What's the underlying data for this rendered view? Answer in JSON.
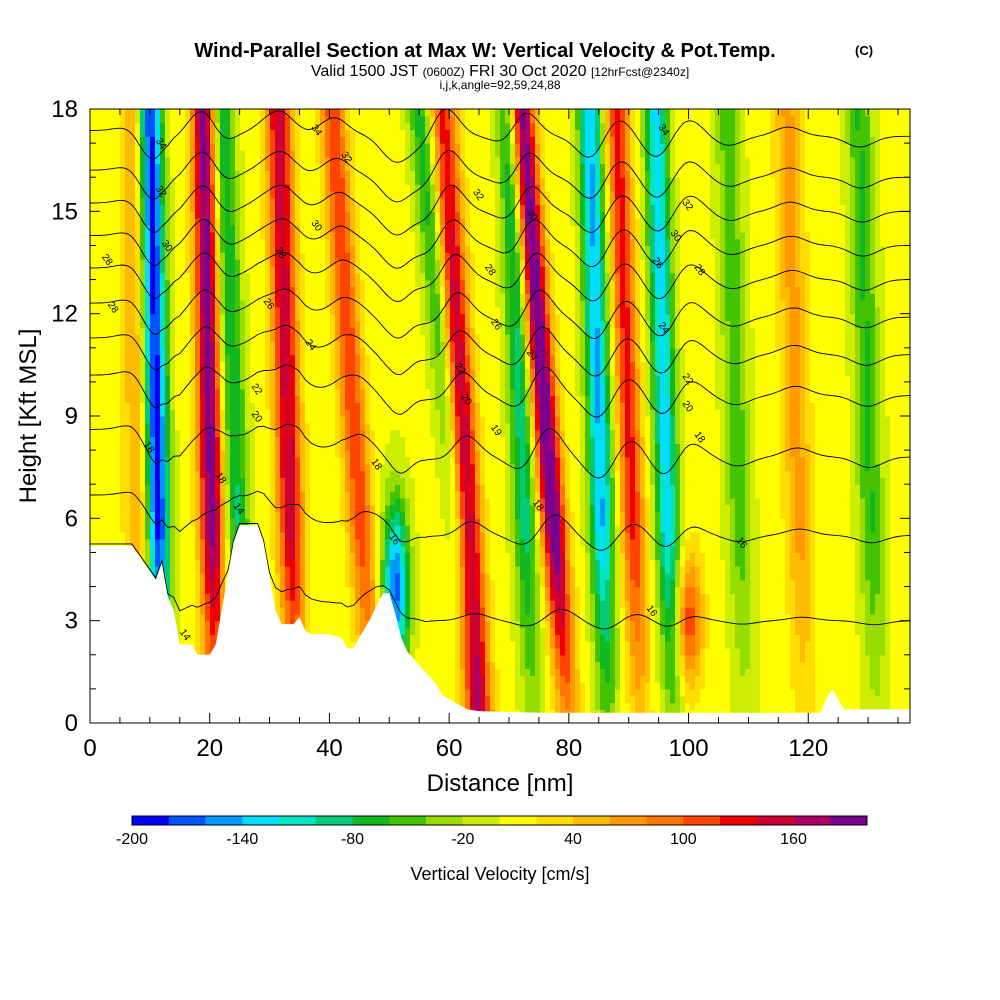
{
  "chart_data": {
    "type": "heatmap",
    "title": "Wind-Parallel Section at Max W: Vertical Velocity & Pot.Temp.",
    "title_mark": "(C)",
    "subtitle": {
      "valid": "Valid 1500 JST",
      "utc": "(0600Z)",
      "date": "FRI 30 Oct 2020",
      "forecast": "[12hrFcst@2340z]"
    },
    "params_line": "i,j,k,angle=92,59,24,88",
    "xlabel": "Distance [nm]",
    "ylabel": "Height [Kft MSL]",
    "xlim": [
      0,
      137
    ],
    "ylim": [
      0,
      18
    ],
    "x_ticks": [
      "0",
      "20",
      "40",
      "60",
      "80",
      "100",
      "120"
    ],
    "y_ticks": [
      "0",
      "3",
      "6",
      "9",
      "12",
      "15",
      "18"
    ],
    "colorbar": {
      "label": "Vertical Velocity [cm/s]",
      "tick_labels": [
        "-200",
        "-140",
        "-80",
        "-20",
        "40",
        "100",
        "160"
      ],
      "levels": [
        -200,
        -180,
        -160,
        -140,
        -120,
        -100,
        -80,
        -60,
        -40,
        -20,
        0,
        20,
        40,
        60,
        80,
        100,
        120,
        140,
        160,
        180,
        200
      ],
      "colors": [
        "#0000ff",
        "#0055ff",
        "#0099ff",
        "#00ddff",
        "#00e6c0",
        "#00cc77",
        "#11b822",
        "#44c400",
        "#99dd00",
        "#ccee00",
        "#ffff00",
        "#ffdd00",
        "#ffbb00",
        "#ff9900",
        "#ff7700",
        "#ff4400",
        "#ee0000",
        "#cc0033",
        "#aa0066",
        "#7a0090"
      ]
    },
    "terrain": [
      [
        0,
        5.2
      ],
      [
        7,
        5.2
      ],
      [
        9,
        4.7
      ],
      [
        11,
        4.2
      ],
      [
        12,
        4.7
      ],
      [
        13,
        3.7
      ],
      [
        14,
        3.3
      ],
      [
        15,
        2.3
      ],
      [
        17,
        2.3
      ],
      [
        18,
        2.0
      ],
      [
        20,
        2.0
      ],
      [
        21,
        2.3
      ],
      [
        22,
        3.3
      ],
      [
        24,
        5.3
      ],
      [
        25,
        5.8
      ],
      [
        28,
        5.8
      ],
      [
        29,
        5.3
      ],
      [
        30,
        4.3
      ],
      [
        31,
        3.3
      ],
      [
        32,
        2.9
      ],
      [
        34,
        2.9
      ],
      [
        35,
        3.1
      ],
      [
        36,
        2.7
      ],
      [
        37,
        2.6
      ],
      [
        40,
        2.6
      ],
      [
        42,
        2.5
      ],
      [
        43,
        2.2
      ],
      [
        44,
        2.2
      ],
      [
        45,
        2.5
      ],
      [
        47,
        3.1
      ],
      [
        48,
        3.5
      ],
      [
        49,
        3.8
      ],
      [
        50,
        3.8
      ],
      [
        51,
        3.2
      ],
      [
        52,
        2.5
      ],
      [
        53,
        2.1
      ],
      [
        54,
        1.9
      ],
      [
        56,
        1.5
      ],
      [
        58,
        1.1
      ],
      [
        59,
        0.8
      ],
      [
        61,
        0.6
      ],
      [
        63,
        0.4
      ],
      [
        65,
        0.35
      ],
      [
        75,
        0.3
      ],
      [
        100,
        0.3
      ],
      [
        122,
        0.3
      ],
      [
        123,
        0.7
      ],
      [
        124,
        1.0
      ],
      [
        125,
        0.7
      ],
      [
        126,
        0.4
      ],
      [
        137,
        0.4
      ]
    ],
    "updraft_bands": [
      {
        "x": 20,
        "w": 186,
        "xt": 2,
        "wt": 44,
        "xb": 24,
        "wb": 140,
        "shape": 0.3
      },
      {
        "x": 33,
        "w": 150,
        "xt": 3,
        "wt": 34,
        "xb": 35,
        "wb": 100,
        "shape": 0.4
      },
      {
        "x": 44,
        "w": 110,
        "xt": 7,
        "wt": 26,
        "xb": 46,
        "wb": 70,
        "shape": 0.4
      },
      {
        "x": 62,
        "w": 195,
        "xt": 6,
        "wt": 22,
        "xb": 62,
        "wb": 2.1,
        "shape": 0.32
      },
      {
        "x": 76,
        "w": 205,
        "xt": 8,
        "wt": 42,
        "xb": 80,
        "wb": 100,
        "shape": 0.35
      },
      {
        "x": 90,
        "w": 120,
        "xt": 4,
        "wt": 30,
        "xb": 94,
        "wb": 90,
        "shape": 0.3
      },
      {
        "x": 100,
        "w": 110,
        "xt": 0.1,
        "wt": 1.9,
        "xb": 100,
        "wb": 3.0,
        "shape": 0.35
      },
      {
        "x": 118,
        "w": 60,
        "xt": 3,
        "wt": 30,
        "xb": 120,
        "wb": 50,
        "shape": 0.5
      },
      {
        "x": 8,
        "w": 60,
        "xt": 1,
        "wt": 30,
        "xb": 11,
        "wb": 50,
        "shape": 0.5
      }
    ],
    "downdraft_bands": [
      {
        "x": 11,
        "w": -205,
        "xt": 2,
        "wt": 36,
        "xb": 16,
        "wb": 120,
        "shape": 0.32
      },
      {
        "x": 24,
        "w": -90,
        "xt": 4,
        "wt": 30,
        "xb": 28,
        "wb": 90,
        "shape": 0.4
      },
      {
        "x": 51,
        "w": -175,
        "xt": 0.5,
        "wt": 2.6,
        "xb": 51,
        "wb": 4.0,
        "shape": 0.3
      },
      {
        "x": 60,
        "w": -80,
        "xt": 10,
        "wt": 30,
        "xb": 65,
        "wb": 90,
        "shape": 0.4
      },
      {
        "x": 72,
        "w": -100,
        "xt": 4,
        "wt": 30,
        "xb": 72,
        "wb": 40,
        "shape": 0.35
      },
      {
        "x": 85,
        "w": -150,
        "xt": 3,
        "wt": 36,
        "xb": 92,
        "wb": 80,
        "shape": 0.35
      },
      {
        "x": 96,
        "w": -140,
        "xt": 3,
        "wt": 30,
        "xb": 103,
        "wb": 80,
        "shape": 0.3
      },
      {
        "x": 108,
        "w": -60,
        "xt": 3,
        "wt": 30,
        "xb": 110,
        "wb": 60,
        "shape": 0.5
      },
      {
        "x": 130,
        "w": -70,
        "xt": 3,
        "wt": 30,
        "xb": 132,
        "wb": 50,
        "shape": 0.5
      }
    ],
    "isentropes": [
      {
        "label": "14",
        "base": 3.0
      },
      {
        "label": "16",
        "base": 5.5
      },
      {
        "label": "18",
        "base": 7.8
      },
      {
        "label": "20",
        "base": 9.6
      },
      {
        "label": "22",
        "base": 10.8
      },
      {
        "label": "24",
        "base": 11.9
      },
      {
        "label": "26",
        "base": 13.0
      },
      {
        "label": "28",
        "base": 14.0
      },
      {
        "label": "30",
        "base": 15.0
      },
      {
        "label": "32",
        "base": 16.0
      },
      {
        "label": "34",
        "base": 17.2
      }
    ],
    "isentrope_labels": [
      {
        "text": "34",
        "x": 12,
        "y": 17.0
      },
      {
        "text": "32",
        "x": 12,
        "y": 15.6
      },
      {
        "text": "30",
        "x": 13,
        "y": 14.0
      },
      {
        "text": "28",
        "x": 3,
        "y": 13.6
      },
      {
        "text": "28",
        "x": 4,
        "y": 12.2
      },
      {
        "text": "34",
        "x": 38,
        "y": 17.4
      },
      {
        "text": "32",
        "x": 43,
        "y": 16.6
      },
      {
        "text": "30",
        "x": 38,
        "y": 14.6
      },
      {
        "text": "28",
        "x": 32,
        "y": 13.8
      },
      {
        "text": "26",
        "x": 30,
        "y": 12.3
      },
      {
        "text": "24",
        "x": 37,
        "y": 11.1
      },
      {
        "text": "22",
        "x": 28,
        "y": 9.8
      },
      {
        "text": "20",
        "x": 28,
        "y": 9.0
      },
      {
        "text": "18",
        "x": 10,
        "y": 8.1
      },
      {
        "text": "18",
        "x": 22,
        "y": 7.2
      },
      {
        "text": "14",
        "x": 25,
        "y": 6.3
      },
      {
        "text": "14",
        "x": 16,
        "y": 2.6
      },
      {
        "text": "18",
        "x": 48,
        "y": 7.6
      },
      {
        "text": "16",
        "x": 51,
        "y": 5.4
      },
      {
        "text": "32",
        "x": 65,
        "y": 15.5
      },
      {
        "text": "30",
        "x": 74,
        "y": 14.9
      },
      {
        "text": "28",
        "x": 67,
        "y": 13.3
      },
      {
        "text": "26",
        "x": 68,
        "y": 11.7
      },
      {
        "text": "24",
        "x": 74,
        "y": 10.8
      },
      {
        "text": "22",
        "x": 62,
        "y": 10.4
      },
      {
        "text": "20",
        "x": 63,
        "y": 9.5
      },
      {
        "text": "19",
        "x": 68,
        "y": 8.6
      },
      {
        "text": "18",
        "x": 75,
        "y": 6.4
      },
      {
        "text": "34",
        "x": 96,
        "y": 17.4
      },
      {
        "text": "32",
        "x": 100,
        "y": 15.2
      },
      {
        "text": "30",
        "x": 98,
        "y": 14.3
      },
      {
        "text": "28",
        "x": 102,
        "y": 13.3
      },
      {
        "text": "26",
        "x": 95,
        "y": 13.5
      },
      {
        "text": "24",
        "x": 96,
        "y": 11.6
      },
      {
        "text": "22",
        "x": 100,
        "y": 10.1
      },
      {
        "text": "20",
        "x": 100,
        "y": 9.3
      },
      {
        "text": "18",
        "x": 102,
        "y": 8.4
      },
      {
        "text": "16",
        "x": 109,
        "y": 5.3
      },
      {
        "text": "16",
        "x": 94,
        "y": 3.3
      }
    ]
  }
}
